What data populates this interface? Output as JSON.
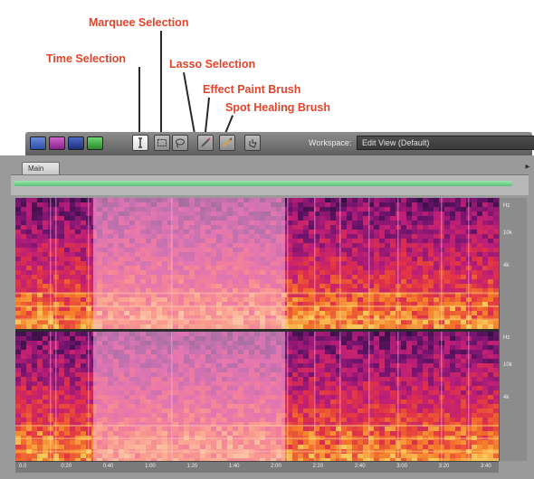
{
  "callouts": {
    "marquee": "Marquee Selection",
    "time": "Time Selection",
    "lasso": "Lasso Selection",
    "effect": "Effect Paint Brush",
    "spot": "Spot Healing Brush"
  },
  "toolbar": {
    "workspace_label": "Workspace:",
    "workspace_value": "Edit View (Default)"
  },
  "panel": {
    "tab_label": "Main"
  },
  "freq_ticks": [
    "Hz",
    "10k",
    "4k",
    "",
    "Hz",
    "10k",
    "4k"
  ],
  "time_ticks": [
    "0.0",
    "0:20",
    "0:40",
    "1:00",
    "1:20",
    "1:40",
    "2:00",
    "2:20",
    "2:40",
    "3:00",
    "3:20",
    "3:40"
  ],
  "colors": {
    "callout": "#e8432a",
    "selection": "#ffbee1",
    "overview": "#57c27a"
  }
}
